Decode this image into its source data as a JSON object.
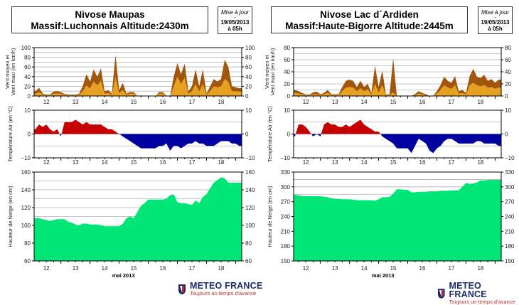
{
  "update": {
    "label": "Mise à jour",
    "dash": "-",
    "date": "19/05/2013",
    "time": "à 05h"
  },
  "logo": {
    "name": "METEO FRANCE",
    "slogan": "Toujours un temps d'avance"
  },
  "colors": {
    "wind_max": "#a0560c",
    "wind_mean": "#e6a022",
    "temp_pos": "#c40000",
    "temp_neg": "#0000a0",
    "snow": "#00e676",
    "grid": "#b0b0b0"
  },
  "stations": [
    {
      "title_line1": "Nivose Maupas",
      "title_line2": "Massif:Luchonnais Altitude:2430m"
    },
    {
      "title_line1": "Nivose Lac d´Ardiden",
      "title_line2": "Massif:Haute-Bigorre Altitude:2445m"
    }
  ],
  "chart_data": [
    {
      "station": "Nivose Maupas",
      "type": "area",
      "xlabel": "mai 2013",
      "xticks": [
        "12",
        "13",
        "14",
        "15",
        "16",
        "17",
        "18"
      ],
      "xlim": [
        12.08,
        19.21
      ],
      "x_start": 12.125,
      "x_step": 0.125,
      "panels": [
        {
          "id": "wind",
          "ylabel_line1": "Vent moyen et",
          "ylabel_line2": "Vent maxi (en km/h)",
          "ylim": [
            0,
            100
          ],
          "yticks": [
            0,
            20,
            40,
            60,
            80,
            100
          ],
          "grid_step": 10,
          "series": [
            {
              "key": "max",
              "values": [
                10,
                17,
                5,
                3,
                3,
                9,
                10,
                8,
                4,
                3,
                3,
                3,
                5,
                20,
                45,
                30,
                55,
                40,
                57,
                10,
                12,
                5,
                85,
                12,
                27,
                5,
                8,
                8,
                0,
                0,
                0,
                0,
                0,
                0,
                8,
                8,
                0,
                0,
                40,
                68,
                45,
                67,
                10,
                20,
                55,
                20,
                55,
                5,
                20,
                35,
                30,
                35,
                75,
                60,
                20,
                18,
                16
              ]
            },
            {
              "key": "mean",
              "values": [
                5,
                8,
                3,
                2,
                2,
                5,
                5,
                5,
                2,
                2,
                2,
                2,
                3,
                10,
                22,
                16,
                30,
                22,
                32,
                5,
                6,
                3,
                40,
                6,
                12,
                3,
                5,
                5,
                0,
                0,
                0,
                0,
                0,
                0,
                5,
                5,
                0,
                0,
                20,
                40,
                25,
                38,
                5,
                10,
                25,
                10,
                25,
                3,
                10,
                20,
                18,
                20,
                35,
                30,
                10,
                10,
                9
              ]
            }
          ]
        },
        {
          "id": "temp",
          "ylabel_line1": "Température Air (en °C)",
          "ylim": [
            -10,
            10
          ],
          "yticks": [
            -10,
            0,
            10
          ],
          "grid_step": 5,
          "series": [
            {
              "key": "temp",
              "values": [
                2,
                4,
                3,
                4,
                2,
                1,
                2,
                -1,
                5,
                5,
                5,
                6,
                5,
                4,
                5,
                4,
                4,
                4,
                4,
                3,
                2,
                2,
                1,
                0,
                -1,
                -2,
                -3,
                -4,
                -5,
                -6,
                -6,
                -6,
                -6,
                -6,
                -5,
                -5,
                -4,
                -7,
                -5,
                -5,
                -6,
                -5,
                -4,
                -4,
                -3,
                -4,
                -4,
                -5,
                -5,
                -5,
                -4,
                -3,
                -3,
                -3,
                -4,
                -4,
                -5
              ]
            }
          ]
        },
        {
          "id": "snow",
          "ylabel_line1": "Hauteur de Neige (en cm)",
          "ylim": [
            60,
            160
          ],
          "yticks": [
            60,
            80,
            100,
            120,
            140,
            160
          ],
          "grid_step": 10,
          "series": [
            {
              "key": "snow",
              "values": [
                108,
                108,
                107,
                106,
                105,
                106,
                107,
                107,
                107,
                104,
                103,
                101,
                100,
                102,
                102,
                101,
                101,
                101,
                100,
                99,
                99,
                99,
                99,
                99,
                102,
                108,
                110,
                108,
                115,
                122,
                125,
                129,
                129,
                129,
                129,
                129,
                130,
                134,
                135,
                126,
                125,
                125,
                124,
                123,
                128,
                125,
                132,
                135,
                142,
                148,
                151,
                154,
                153,
                148,
                148,
                148,
                148
              ]
            }
          ]
        }
      ]
    },
    {
      "station": "Nivose Lac d´Ardiden",
      "type": "area",
      "xlabel": "mai 2013",
      "xticks": [
        "12",
        "13",
        "14",
        "15",
        "16",
        "17",
        "18"
      ],
      "xlim": [
        12.08,
        19.21
      ],
      "x_start": 12.125,
      "x_step": 0.125,
      "panels": [
        {
          "id": "wind",
          "ylabel_line1": "Vent moyen et",
          "ylabel_line2": "Vent maxi (en km/h)",
          "ylim": [
            0,
            80
          ],
          "yticks": [
            0,
            20,
            40,
            60,
            80
          ],
          "grid_step": 10,
          "series": [
            {
              "key": "max",
              "values": [
                10,
                8,
                5,
                2,
                2,
                6,
                7,
                3,
                5,
                10,
                3,
                3,
                3,
                15,
                25,
                27,
                25,
                15,
                25,
                15,
                20,
                5,
                50,
                15,
                42,
                3,
                3,
                62,
                0,
                0,
                0,
                0,
                0,
                3,
                8,
                5,
                3,
                0,
                0,
                8,
                18,
                32,
                25,
                22,
                33,
                8,
                10,
                5,
                33,
                45,
                32,
                30,
                35,
                25,
                28,
                22,
                27
              ]
            },
            {
              "key": "mean",
              "values": [
                5,
                4,
                3,
                1,
                1,
                3,
                3,
                2,
                3,
                5,
                2,
                2,
                2,
                8,
                14,
                15,
                14,
                8,
                13,
                8,
                11,
                3,
                20,
                6,
                18,
                2,
                2,
                6,
                0,
                0,
                0,
                0,
                0,
                1,
                4,
                3,
                1,
                0,
                0,
                4,
                10,
                18,
                14,
                12,
                18,
                4,
                5,
                3,
                18,
                22,
                18,
                16,
                18,
                14,
                15,
                12,
                14
              ]
            }
          ]
        },
        {
          "id": "temp",
          "ylabel_line1": "Température Air (en °C)",
          "ylim": [
            -10,
            10
          ],
          "yticks": [
            -10,
            0,
            10
          ],
          "grid_step": 5,
          "series": [
            {
              "key": "temp",
              "values": [
                -1,
                4,
                4,
                3,
                1,
                -1,
                0,
                -1,
                4,
                5,
                4,
                4,
                3,
                3,
                4,
                3,
                4,
                5,
                6,
                4,
                3,
                2,
                1,
                1,
                -1,
                -2,
                -3,
                -4,
                -6,
                -6,
                -6,
                -6,
                -8,
                -5,
                -2,
                -3,
                -4,
                -7,
                -8,
                -6,
                -5,
                -3,
                -2,
                -2,
                -3,
                -4,
                -4,
                -4,
                -4,
                -4,
                -3,
                -3,
                -4,
                -4,
                -4,
                -4,
                -5
              ]
            }
          ]
        },
        {
          "id": "snow",
          "ylabel_line1": "Hauteur de Neige (en cm)",
          "ylim": [
            150,
            330
          ],
          "yticks": [
            150,
            180,
            210,
            240,
            270,
            300,
            330
          ],
          "grid_step": 15,
          "series": [
            {
              "key": "snow",
              "values": [
                284,
                283,
                281,
                281,
                281,
                281,
                281,
                281,
                280,
                279,
                277,
                276,
                276,
                275,
                275,
                275,
                274,
                273,
                273,
                273,
                273,
                273,
                272,
                275,
                279,
                279,
                280,
                286,
                295,
                295,
                294,
                294,
                289,
                289,
                290,
                290,
                290,
                291,
                291,
                291,
                292,
                292,
                292,
                293,
                293,
                293,
                300,
                308,
                306,
                307,
                309,
                313,
                313,
                314,
                314,
                314,
                314
              ]
            }
          ]
        }
      ]
    }
  ]
}
